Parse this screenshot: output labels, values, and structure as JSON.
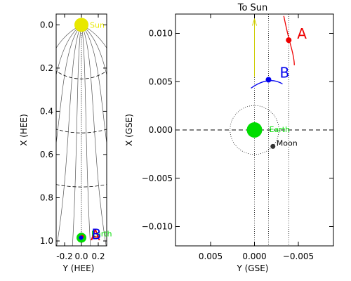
{
  "chart_data": [
    {
      "type": "scatter",
      "name": "heliocentric-view",
      "xlabel": "Y (HEE)",
      "ylabel": "X (HEE)",
      "xlim": [
        -0.3,
        0.3
      ],
      "ylim": [
        1.0,
        -0.05
      ],
      "x_ticks": [
        -0.2,
        0.0,
        0.2
      ],
      "x_tick_labels": [
        "-0.2",
        "0.0",
        "0.2"
      ],
      "y_ticks": [
        0.0,
        0.2,
        0.4,
        0.6,
        0.8,
        1.0
      ],
      "y_tick_labels": [
        "0.0",
        "0.2",
        "0.4",
        "0.6",
        "0.8",
        "1.0"
      ],
      "objects": [
        {
          "label": "Sun",
          "x": 0.0,
          "y": 0.0,
          "color": "#e8e800"
        },
        {
          "label": "Earth",
          "x": 0.0,
          "y": 0.985,
          "color": "#00dd00"
        },
        {
          "label": "A",
          "x": 0.0,
          "y": 0.977,
          "color": "#ee0000"
        },
        {
          "label": "B",
          "x": -0.005,
          "y": 0.985,
          "color": "#0000ee"
        }
      ],
      "parker_spiral_lines": true,
      "sun_earth_line": "dotted",
      "distance_circles": "dashed",
      "grid": false
    },
    {
      "type": "scatter",
      "name": "geocentric-view",
      "title": "To Sun",
      "xlabel": "Y (GSE)",
      "ylabel": "X (GSE)",
      "xlim": [
        0.009,
        -0.009
      ],
      "ylim": [
        -0.012,
        0.012
      ],
      "x_ticks": [
        0.005,
        0.0,
        -0.005
      ],
      "x_tick_labels": [
        "0.005",
        "0.000",
        "−0.005"
      ],
      "y_ticks": [
        0.01,
        0.005,
        0.0,
        -0.005,
        -0.01
      ],
      "y_tick_labels": [
        "0.010",
        "0.005",
        "0.000",
        "−0.005",
        "−0.010"
      ],
      "objects": [
        {
          "label": "Earth",
          "x": 0.0,
          "y": 0.0,
          "color": "#00dd00"
        },
        {
          "label": "Moon",
          "x": -0.0021,
          "y": -0.0017,
          "color": "#333333"
        },
        {
          "label": "A",
          "x": -0.0039,
          "y": 0.0093,
          "color": "#ee0000"
        },
        {
          "label": "B",
          "x": -0.0016,
          "y": 0.0052,
          "color": "#0000ee"
        }
      ],
      "moon_orbit_radius": 0.0026,
      "sun_direction_arrow": {
        "x": 0.0,
        "color": "#cccc00"
      },
      "grid": false
    }
  ]
}
